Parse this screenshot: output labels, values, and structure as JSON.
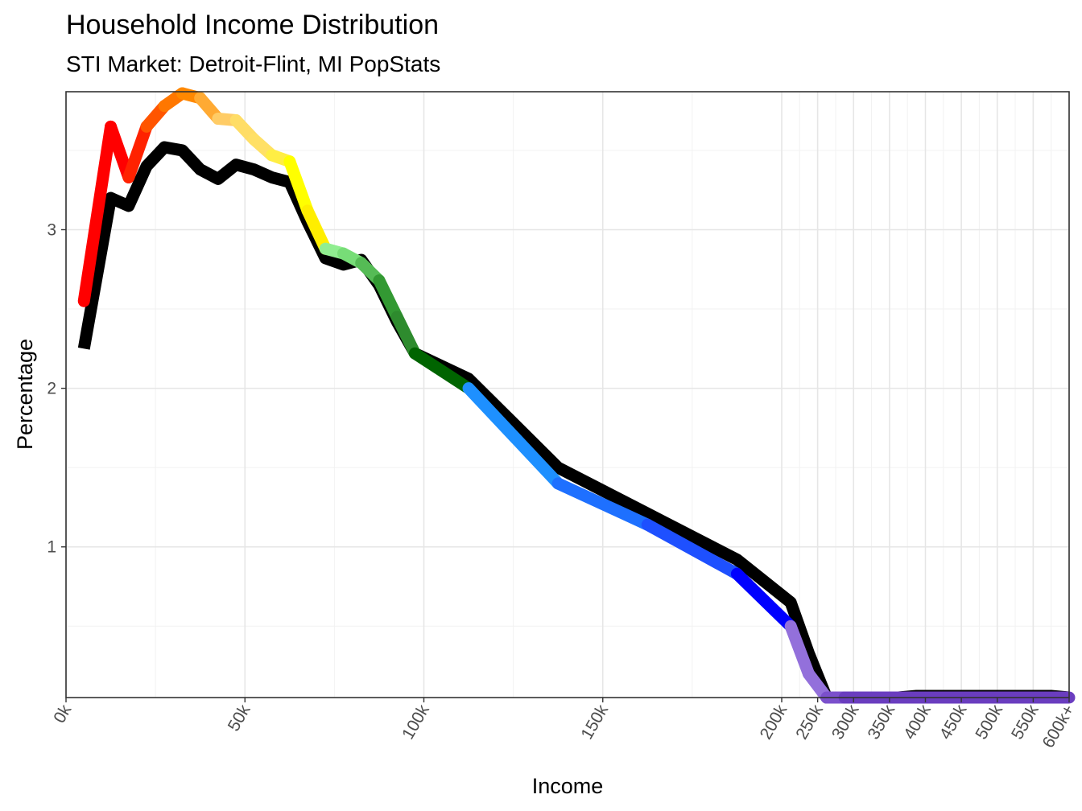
{
  "title": "Household Income Distribution",
  "subtitle": "STI Market: Detroit-Flint, MI PopStats",
  "chart_data": {
    "type": "line",
    "xlabel": "Income",
    "ylabel": "Percentage",
    "x_scale": "piecewise: linear 0k-200k, compressed 200k-600k+",
    "xticks": [
      {
        "label": "0k",
        "value": 0
      },
      {
        "label": "50k",
        "value": 50
      },
      {
        "label": "100k",
        "value": 100
      },
      {
        "label": "150k",
        "value": 150
      },
      {
        "label": "200k",
        "value": 200
      },
      {
        "label": "250k",
        "value": 250
      },
      {
        "label": "300k",
        "value": 300
      },
      {
        "label": "350k",
        "value": 350
      },
      {
        "label": "400k",
        "value": 400
      },
      {
        "label": "450k",
        "value": 450
      },
      {
        "label": "500k",
        "value": 500
      },
      {
        "label": "550k",
        "value": 550
      },
      {
        "label": "600k+",
        "value": 600
      }
    ],
    "yticks": [
      {
        "label": "1",
        "value": 1
      },
      {
        "label": "2",
        "value": 2
      },
      {
        "label": "3",
        "value": 3
      }
    ],
    "ylim": [
      0.05,
      3.87
    ],
    "grid": true,
    "series": [
      {
        "role": "reference",
        "color": "#000000",
        "x": [
          5,
          12.5,
          17.5,
          22.5,
          27.5,
          32.5,
          37.5,
          42.5,
          47.5,
          52.5,
          57.5,
          62.5,
          67.5,
          72.5,
          77.5,
          82.5,
          87.5,
          92.5,
          97.5,
          112.5,
          137.5,
          162.5,
          187.5,
          212.5,
          237.5,
          262.5,
          287.5,
          312.5,
          337.5,
          362.5,
          387.5,
          425,
          475,
          525,
          575,
          600
        ],
        "y": [
          2.25,
          3.2,
          3.15,
          3.4,
          3.52,
          3.5,
          3.38,
          3.32,
          3.41,
          3.38,
          3.33,
          3.3,
          3.05,
          2.82,
          2.78,
          2.81,
          2.65,
          2.42,
          2.22,
          2.06,
          1.5,
          1.21,
          0.92,
          0.65,
          0.33,
          0.05,
          0.05,
          0.05,
          0.05,
          0.05,
          0.06,
          0.06,
          0.06,
          0.06,
          0.06,
          0.05
        ]
      },
      {
        "role": "market",
        "x": [
          5,
          12.5,
          17.5,
          22.5,
          27.5,
          32.5,
          37.5,
          42.5,
          47.5,
          52.5,
          57.5,
          62.5,
          67.5,
          72.5,
          77.5,
          82.5,
          87.5,
          92.5,
          97.5,
          112.5,
          137.5,
          162.5,
          187.5,
          212.5,
          237.5,
          262.5,
          287.5,
          312.5,
          337.5,
          362.5,
          387.5,
          425,
          475,
          525,
          575,
          600
        ],
        "y": [
          2.55,
          3.65,
          3.33,
          3.65,
          3.78,
          3.86,
          3.83,
          3.7,
          3.69,
          3.57,
          3.47,
          3.43,
          3.12,
          2.88,
          2.85,
          2.79,
          2.68,
          2.45,
          2.22,
          2.0,
          1.4,
          1.14,
          0.83,
          0.5,
          0.2,
          0.05,
          0.05,
          0.05,
          0.05,
          0.05,
          0.05,
          0.05,
          0.05,
          0.05,
          0.05,
          0.05
        ],
        "segment_colors": [
          "#ff0000",
          "#ff0000",
          "#ff2200",
          "#ff5500",
          "#ff7700",
          "#ff8800",
          "#ffaa33",
          "#ffcc66",
          "#ffdd66",
          "#ffe066",
          "#ffee44",
          "#ffff00",
          "#ffee00",
          "#90ee90",
          "#77dd77",
          "#55bb55",
          "#339933",
          "#2e8b2e",
          "#006400",
          "#1e90ff",
          "#1e70ff",
          "#1e50ff",
          "#0000ff",
          "#9370db",
          "#9370db",
          "#7b50cc",
          "#6a3dbf",
          "#6a3dbf",
          "#6a3dbf",
          "#6a3dbf",
          "#6a3dbf",
          "#6a3dbf",
          "#6a3dbf",
          "#6a3dbf",
          "#6a3dbf"
        ]
      }
    ]
  }
}
